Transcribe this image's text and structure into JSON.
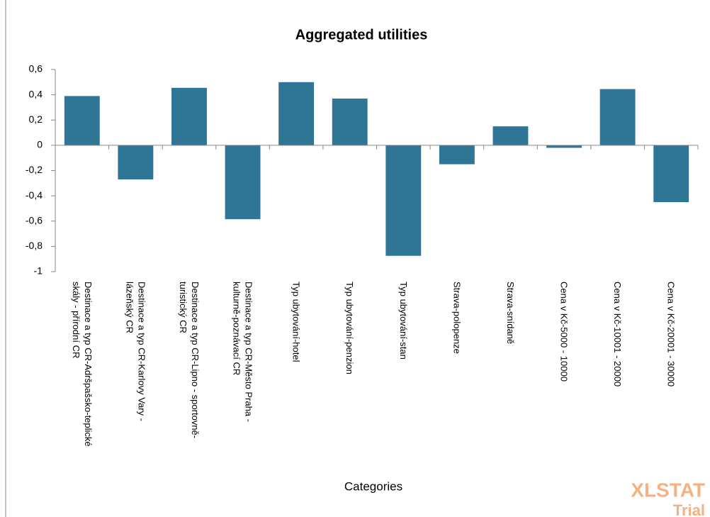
{
  "chart_data": {
    "type": "bar",
    "title": "Aggregated utilities",
    "x_label": "Categories",
    "categories": [
      "Destinace a typ CR-Adršpašsko-teplické skály - přírodní CR",
      "Destinace a typ CR-Karlovy Vary - lázeňský CR",
      "Destinace a typ CR-Lipno - sportovně-turistický CR",
      "Destinace a typ CR-Město Praha - kulturně-poznávací CR",
      "Typ ubytování-hotel",
      "Typ ubytování-penzion",
      "Typ ubytování-stan",
      "Strava-polopenze",
      "Strava-snídaně",
      "Cena v Kč-5000 - 10000",
      "Cena v Kč-10001 - 20000",
      "Cena v Kč-20001 - 30000"
    ],
    "values": [
      0.39,
      -0.27,
      0.455,
      -0.585,
      0.5,
      0.37,
      -0.875,
      -0.15,
      0.15,
      -0.02,
      0.445,
      -0.45
    ],
    "color": "#2e7596",
    "ylim": [
      -1,
      0.6
    ],
    "yticks": [
      {
        "value": -1,
        "label": "-1"
      },
      {
        "value": -0.8,
        "label": "-0,8"
      },
      {
        "value": -0.6,
        "label": "-0,6"
      },
      {
        "value": -0.4,
        "label": "-0,4"
      },
      {
        "value": -0.2,
        "label": "-0,2"
      },
      0,
      {
        "value": 0.2,
        "label": "0,2"
      },
      {
        "value": 0.4,
        "label": "0,4"
      },
      {
        "value": 0.6,
        "label": "0,6"
      }
    ],
    "grid": false,
    "watermark": "XLSTAT",
    "watermark_sub": "Trial"
  }
}
